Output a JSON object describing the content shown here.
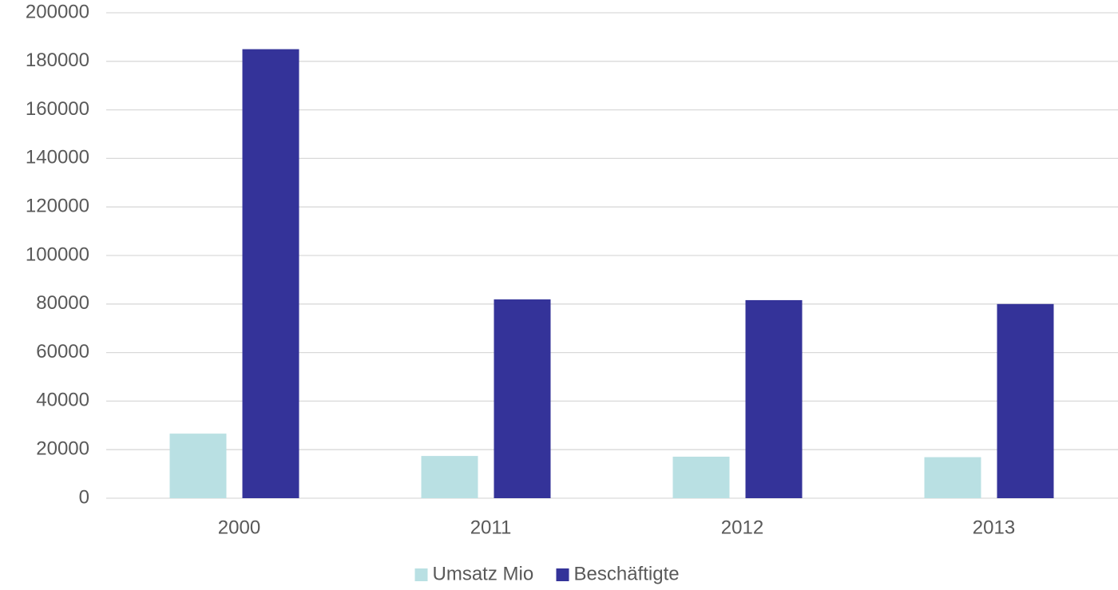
{
  "chart_data": {
    "type": "bar",
    "categories": [
      "2000",
      "2011",
      "2012",
      "2013"
    ],
    "series": [
      {
        "name": "Umsatz Mio",
        "color": "#b9e0e3",
        "values": [
          26600,
          17400,
          17100,
          16900
        ]
      },
      {
        "name": "Beschäftigte",
        "color": "#343399",
        "values": [
          185000,
          81900,
          81600,
          80000
        ]
      }
    ],
    "ylim": [
      0,
      200000
    ],
    "yticks": [
      0,
      20000,
      40000,
      60000,
      80000,
      100000,
      120000,
      140000,
      160000,
      180000,
      200000
    ],
    "grid": true,
    "legend": "bottom"
  }
}
